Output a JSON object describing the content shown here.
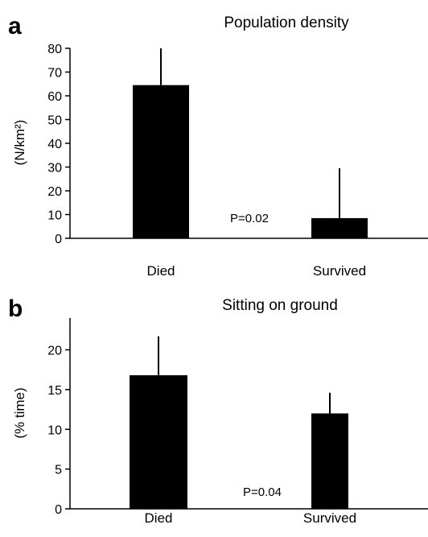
{
  "chart_data": [
    {
      "type": "bar",
      "panel": "a",
      "title": "Population density",
      "ylabel": "(N/km²)",
      "categories": [
        "Died",
        "Survived"
      ],
      "values": [
        64.5,
        8.5
      ],
      "error_upper": [
        80,
        29.5
      ],
      "ylim": [
        0,
        80
      ],
      "yticks": [
        "0",
        "10",
        "20",
        "30",
        "40",
        "50",
        "60",
        "70",
        "80"
      ],
      "annotation": "P=0.02",
      "grid": false
    },
    {
      "type": "bar",
      "panel": "b",
      "title": "Sitting on ground",
      "ylabel": "(% time)",
      "categories": [
        "Died",
        "Survived"
      ],
      "values": [
        16.8,
        12.0
      ],
      "error_upper": [
        21.7,
        14.6
      ],
      "ylim": [
        0,
        24
      ],
      "yticks": [
        "0",
        "5",
        "10",
        "15",
        "20"
      ],
      "annotation": "P=0.04",
      "grid": false
    }
  ]
}
